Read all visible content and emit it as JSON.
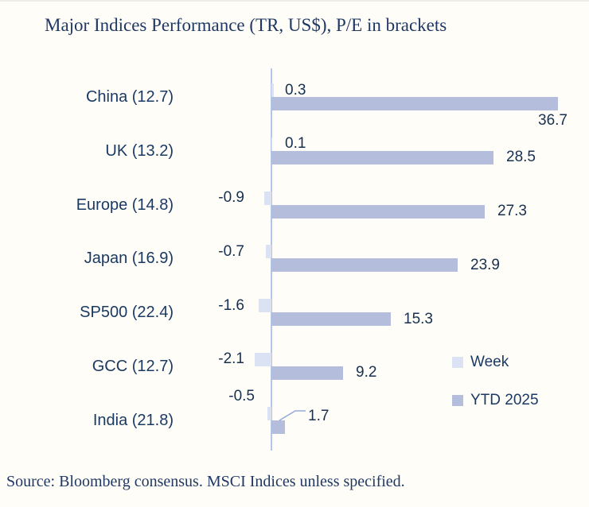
{
  "title": "Major Indices Performance (TR, US$), P/E in brackets",
  "source": "Source: Bloomberg consensus. MSCI Indices unless specified.",
  "colors": {
    "background": "#fefdf8",
    "week_bar": "#dbe2f3",
    "ytd_bar": "#b4bddc",
    "axis_line": "#b3c6e7",
    "leader_line": "#96aad7",
    "text_navy": "#1b3a63",
    "title_navy": "#1f3864"
  },
  "legend": [
    {
      "label": "Week",
      "color": "#dbe2f3"
    },
    {
      "label": "YTD 2025",
      "color": "#b4bddc"
    }
  ],
  "chart_data": {
    "type": "bar",
    "orientation": "horizontal",
    "title": "Major Indices Performance (TR, US$), P/E in brackets",
    "categories": [
      "China (12.7)",
      "UK (13.2)",
      "Europe (14.8)",
      "Japan (16.9)",
      "SP500 (22.4)",
      "GCC (12.7)",
      "India (21.8)"
    ],
    "series": [
      {
        "name": "Week",
        "values": [
          0.3,
          0.1,
          -0.9,
          -0.7,
          -1.6,
          -2.1,
          -0.5
        ]
      },
      {
        "name": "YTD 2025",
        "values": [
          36.7,
          28.5,
          27.3,
          23.9,
          15.3,
          9.2,
          1.7
        ]
      }
    ],
    "xlabel": "",
    "ylabel": "",
    "xlim": [
      -5,
      40
    ],
    "grid": false,
    "value_axis_visible": false,
    "data_labels": true,
    "legend_position": "right-bottom"
  }
}
